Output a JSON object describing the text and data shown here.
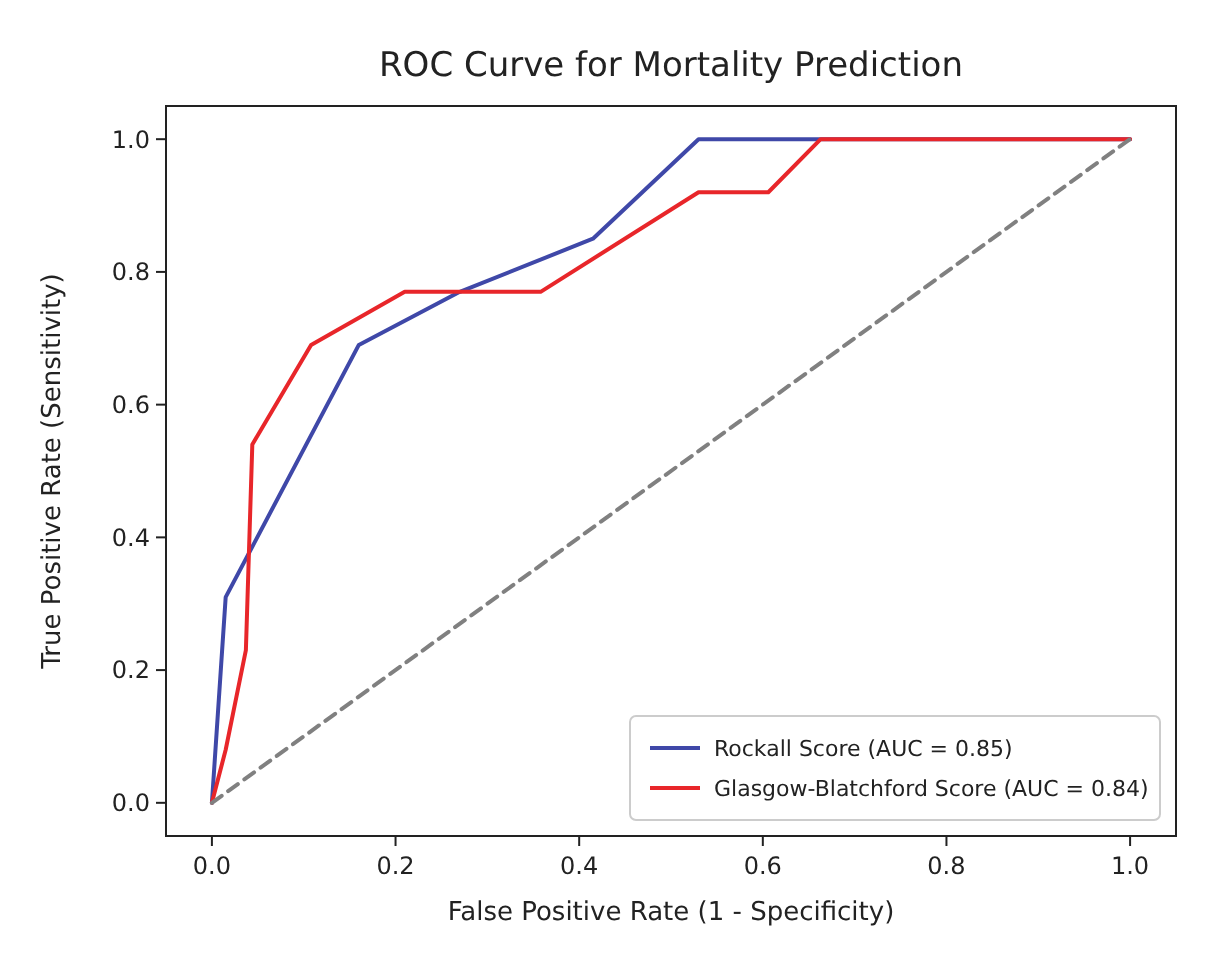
{
  "chart_data": {
    "type": "line",
    "title": "ROC Curve for Mortality Prediction",
    "xlabel": "False Positive Rate (1 - Specificity)",
    "ylabel": "True Positive Rate (Sensitivity)",
    "xlim": [
      -0.05,
      1.05
    ],
    "ylim": [
      -0.05,
      1.05
    ],
    "xticks": [
      {
        "value": 0,
        "label": "0.0"
      },
      0.2,
      0.4,
      0.6,
      0.8,
      {
        "value": 1,
        "label": "1.0"
      }
    ],
    "yticks": [
      {
        "value": 0,
        "label": "0.0"
      },
      0.2,
      0.4,
      0.6,
      0.8,
      {
        "value": 1,
        "label": "1.0"
      }
    ],
    "grid": false,
    "legend": "bottom right",
    "marker": "none",
    "series": [
      {
        "name": "Rockall Score (AUC = 0.85)",
        "color": "#3f48a8",
        "line_style": "solid",
        "x": [
          0,
          0.015,
          0.16,
          0.27,
          0.415,
          0.53,
          1
        ],
        "values": [
          0,
          0.31,
          0.69,
          0.77,
          0.85,
          1,
          1
        ]
      },
      {
        "name": "Glasgow-Blatchford Score (AUC = 0.84)",
        "color": "#e8262a",
        "line_style": "solid",
        "x": [
          0,
          0.015,
          0.037,
          0.044,
          0.108,
          0.21,
          0.358,
          0.53,
          0.606,
          0.663,
          1
        ],
        "values": [
          0,
          0.08,
          0.23,
          0.54,
          0.69,
          0.77,
          0.77,
          0.92,
          0.92,
          1,
          1
        ]
      },
      {
        "color": "#808080",
        "line_style": "dashed",
        "x": [
          0,
          1
        ],
        "values": [
          0,
          1
        ]
      }
    ]
  }
}
